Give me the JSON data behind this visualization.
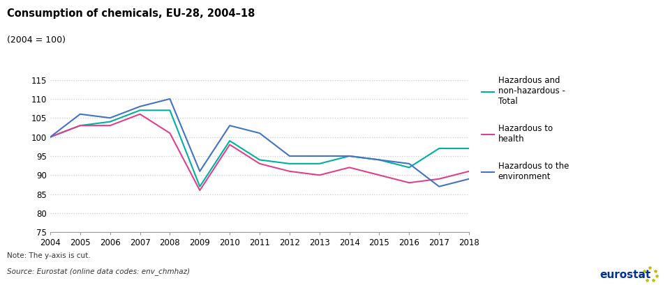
{
  "title": "Consumption of chemicals, EU-28, 2004–18",
  "subtitle": "(2004 = 100)",
  "years": [
    2004,
    2005,
    2006,
    2007,
    2008,
    2009,
    2010,
    2011,
    2012,
    2013,
    2014,
    2015,
    2016,
    2017,
    2018
  ],
  "total": [
    100,
    103,
    104,
    107,
    107,
    87,
    99,
    94,
    93,
    93,
    95,
    94,
    92,
    97,
    97
  ],
  "health": [
    100,
    103,
    103,
    106,
    101,
    86,
    98,
    93,
    91,
    90,
    92,
    90,
    88,
    89,
    91
  ],
  "environment": [
    100,
    106,
    105,
    108,
    110,
    91,
    103,
    101,
    95,
    95,
    95,
    94,
    93,
    87,
    89
  ],
  "color_total": "#00b0a0",
  "color_health": "#e0408c",
  "color_environment": "#4472c4",
  "ylim": [
    75,
    115
  ],
  "yticks": [
    75,
    80,
    85,
    90,
    95,
    100,
    105,
    110,
    115
  ],
  "grid_color": "#cccccc",
  "bg_color": "#ffffff",
  "note": "Note: The y-axis is cut.",
  "source": "Source: Eurostat (online data codes: env_chmhaz)",
  "legend_labels": [
    "Hazardous and\nnon-hazardous -\nTotal",
    "Hazardous to\nhealth",
    "Hazardous to the\nenvironment"
  ]
}
